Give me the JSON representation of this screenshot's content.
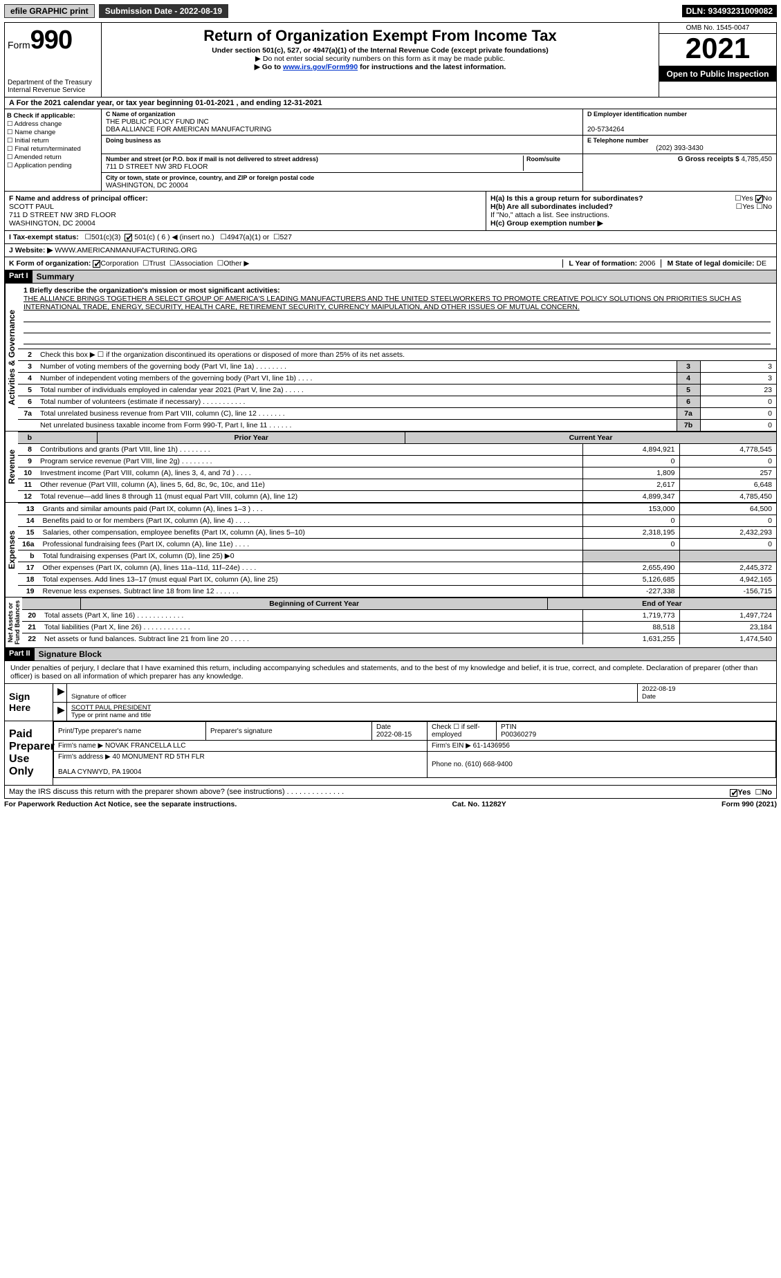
{
  "topbar": {
    "efile_label": "efile GRAPHIC print",
    "submission_label": "Submission Date - 2022-08-19",
    "dln": "DLN: 93493231009082"
  },
  "header": {
    "form_label": "Form",
    "form_number": "990",
    "dept": "Department of the Treasury\nInternal Revenue Service",
    "title": "Return of Organization Exempt From Income Tax",
    "subtitle": "Under section 501(c), 527, or 4947(a)(1) of the Internal Revenue Code (except private foundations)",
    "note1": "▶ Do not enter social security numbers on this form as it may be made public.",
    "note2_prefix": "▶ Go to ",
    "note2_link": "www.irs.gov/Form990",
    "note2_suffix": " for instructions and the latest information.",
    "omb": "OMB No. 1545-0047",
    "year": "2021",
    "open": "Open to Public Inspection"
  },
  "line_a": "A For the 2021 calendar year, or tax year beginning 01-01-2021     , and ending 12-31-2021",
  "section_b": {
    "heading": "B Check if applicable:",
    "opts": [
      "Address change",
      "Name change",
      "Initial return",
      "Final return/terminated",
      "Amended return",
      "Application pending"
    ],
    "c_label": "C Name of organization",
    "org_name": "THE PUBLIC POLICY FUND INC\nDBA ALLIANCE FOR AMERICAN MANUFACTURING",
    "dba_label": "Doing business as",
    "addr_label": "Number and street (or P.O. box if mail is not delivered to street address)",
    "room_label": "Room/suite",
    "addr": "711 D STREET NW 3RD FLOOR",
    "city_label": "City or town, state or province, country, and ZIP or foreign postal code",
    "city": "WASHINGTON, DC  20004",
    "d_label": "D Employer identification number",
    "ein": "20-5734264",
    "e_label": "E Telephone number",
    "phone": "(202) 393-3430",
    "g_label": "G Gross receipts $",
    "gross": "4,785,450"
  },
  "section_f": {
    "f_label": "F Name and address of principal officer:",
    "officer": "SCOTT PAUL\n711 D STREET NW 3RD FLOOR\nWASHINGTON, DC  20004",
    "ha": "H(a)  Is this a group return for subordinates?",
    "hb": "H(b)  Are all subordinates included?",
    "hb_note": "If \"No,\" attach a list. See instructions.",
    "hc": "H(c)  Group exemption number ▶",
    "yes": "Yes",
    "no": "No"
  },
  "status": {
    "i_label": "I   Tax-exempt status:",
    "c3": "501(c)(3)",
    "c": "501(c) ( 6 ) ◀ (insert no.)",
    "a1": "4947(a)(1) or",
    "s527": "527"
  },
  "website": {
    "label": "J   Website: ▶",
    "value": "WWW.AMERICANMANUFACTURING.ORG"
  },
  "korg": {
    "k_label": "K Form of organization:",
    "corp": "Corporation",
    "trust": "Trust",
    "assoc": "Association",
    "other": "Other ▶",
    "l_label": "L Year of formation:",
    "l_val": "2006",
    "m_label": "M State of legal domicile:",
    "m_val": "DE"
  },
  "part1": {
    "label": "Part I",
    "title": "Summary",
    "q1": "1  Briefly describe the organization's mission or most significant activities:",
    "mission": "THE ALLIANCE BRINGS TOGETHER A SELECT GROUP OF AMERICA'S LEADING MANUFACTURERS AND THE UNITED STEELWORKERS TO PROMOTE CREATIVE POLICY SOLUTIONS ON PRIORITIES SUCH AS INTERNATIONAL TRADE, ENERGY, SECURITY, HEALTH CARE, RETIREMENT SECURITY, CURRENCY MAIPULATION, AND OTHER ISSUES OF MUTUAL CONCERN.",
    "q2": "Check this box ▶ ☐  if the organization discontinued its operations or disposed of more than 25% of its net assets.",
    "rows_gov": [
      {
        "n": "3",
        "t": "Number of voting members of the governing body (Part VI, line 1a)   .    .    .    .    .    .    .    .",
        "b": "3",
        "v": "3"
      },
      {
        "n": "4",
        "t": "Number of independent voting members of the governing body (Part VI, line 1b)    .    .    .    .",
        "b": "4",
        "v": "3"
      },
      {
        "n": "5",
        "t": "Total number of individuals employed in calendar year 2021 (Part V, line 2a)   .    .    .    .    .",
        "b": "5",
        "v": "23"
      },
      {
        "n": "6",
        "t": "Total number of volunteers (estimate if necessary)    .    .    .    .    .    .    .    .    .    .    .",
        "b": "6",
        "v": "0"
      },
      {
        "n": "7a",
        "t": "Total unrelated business revenue from Part VIII, column (C), line 12   .    .    .    .    .    .    .",
        "b": "7a",
        "v": "0"
      },
      {
        "n": "",
        "t": "Net unrelated business taxable income from Form 990-T, Part I, line 11   .    .    .    .    .    .",
        "b": "7b",
        "v": "0"
      }
    ],
    "hdr_py": "Prior Year",
    "hdr_cy": "Current Year",
    "rows_rev": [
      {
        "n": "8",
        "t": "Contributions and grants (Part VIII, line 1h)   .    .    .    .    .    .    .    .",
        "py": "4,894,921",
        "cy": "4,778,545"
      },
      {
        "n": "9",
        "t": "Program service revenue (Part VIII, line 2g)    .    .    .    .    .    .    .    .",
        "py": "0",
        "cy": "0"
      },
      {
        "n": "10",
        "t": "Investment income (Part VIII, column (A), lines 3, 4, and 7d )    .    .    .    .",
        "py": "1,809",
        "cy": "257"
      },
      {
        "n": "11",
        "t": "Other revenue (Part VIII, column (A), lines 5, 6d, 8c, 9c, 10c, and 11e)",
        "py": "2,617",
        "cy": "6,648"
      },
      {
        "n": "12",
        "t": "Total revenue—add lines 8 through 11 (must equal Part VIII, column (A), line 12)",
        "py": "4,899,347",
        "cy": "4,785,450"
      }
    ],
    "rows_exp": [
      {
        "n": "13",
        "t": "Grants and similar amounts paid (Part IX, column (A), lines 1–3 )   .    .    .",
        "py": "153,000",
        "cy": "64,500"
      },
      {
        "n": "14",
        "t": "Benefits paid to or for members (Part IX, column (A), line 4)   .    .    .    .",
        "py": "0",
        "cy": "0"
      },
      {
        "n": "15",
        "t": "Salaries, other compensation, employee benefits (Part IX, column (A), lines 5–10)",
        "py": "2,318,195",
        "cy": "2,432,293"
      },
      {
        "n": "16a",
        "t": "Professional fundraising fees (Part IX, column (A), line 11e)   .    .    .    .",
        "py": "0",
        "cy": "0"
      },
      {
        "n": "b",
        "t": "Total fundraising expenses (Part IX, column (D), line 25) ▶0",
        "py": "",
        "cy": "",
        "shade": true
      },
      {
        "n": "17",
        "t": "Other expenses (Part IX, column (A), lines 11a–11d, 11f–24e)    .    .    .   .",
        "py": "2,655,490",
        "cy": "2,445,372"
      },
      {
        "n": "18",
        "t": "Total expenses. Add lines 13–17 (must equal Part IX, column (A), line 25)",
        "py": "5,126,685",
        "cy": "4,942,165"
      },
      {
        "n": "19",
        "t": "Revenue less expenses. Subtract line 18 from line 12   .    .    .    .    .    .",
        "py": "-227,338",
        "cy": "-156,715"
      }
    ],
    "hdr_boy": "Beginning of Current Year",
    "hdr_eoy": "End of Year",
    "rows_net": [
      {
        "n": "20",
        "t": "Total assets (Part X, line 16)   .    .    .    .    .    .    .    .    .    .    .    .",
        "py": "1,719,773",
        "cy": "1,497,724"
      },
      {
        "n": "21",
        "t": "Total liabilities (Part X, line 26)   .    .    .    .    .    .    .    .    .    .    .    .",
        "py": "88,518",
        "cy": "23,184"
      },
      {
        "n": "22",
        "t": "Net assets or fund balances. Subtract line 21 from line 20    .    .    .    .    .",
        "py": "1,631,255",
        "cy": "1,474,540"
      }
    ],
    "vlabels": {
      "gov": "Activities & Governance",
      "rev": "Revenue",
      "exp": "Expenses",
      "net": "Net Assets or\nFund Balances"
    }
  },
  "part2": {
    "label": "Part II",
    "title": "Signature Block",
    "penalty": "Under penalties of perjury, I declare that I have examined this return, including accompanying schedules and statements, and to the best of my knowledge and belief, it is true, correct, and complete. Declaration of preparer (other than officer) is based on all information of which preparer has any knowledge.",
    "sign_here": "Sign Here",
    "sig_officer": "Signature of officer",
    "sig_date": "2022-08-19",
    "date_lbl": "Date",
    "name_title": "SCOTT PAUL  PRESIDENT",
    "name_lbl": "Type or print name and title",
    "paid": "Paid Preparer Use Only",
    "h_name": "Print/Type preparer's name",
    "h_sig": "Preparer's signature",
    "h_date": "Date",
    "p_date": "2022-08-15",
    "h_check": "Check ☐ if self-employed",
    "h_ptin": "PTIN",
    "ptin": "P00360279",
    "firm_name_lbl": "Firm's name      ▶",
    "firm_name": "NOVAK FRANCELLA LLC",
    "firm_ein_lbl": "Firm's EIN ▶",
    "firm_ein": "61-1436956",
    "firm_addr_lbl": "Firm's address ▶",
    "firm_addr": "40 MONUMENT RD 5TH FLR\n\nBALA CYNWYD, PA  19004",
    "firm_phone_lbl": "Phone no.",
    "firm_phone": "(610) 668-9400",
    "discuss": "May the IRS discuss this return with the preparer shown above? (see instructions)    .    .    .    .    .    .    .    .    .    .    .    .    .    ."
  },
  "footer": {
    "left": "For Paperwork Reduction Act Notice, see the separate instructions.",
    "mid": "Cat. No. 11282Y",
    "right": "Form 990 (2021)"
  }
}
